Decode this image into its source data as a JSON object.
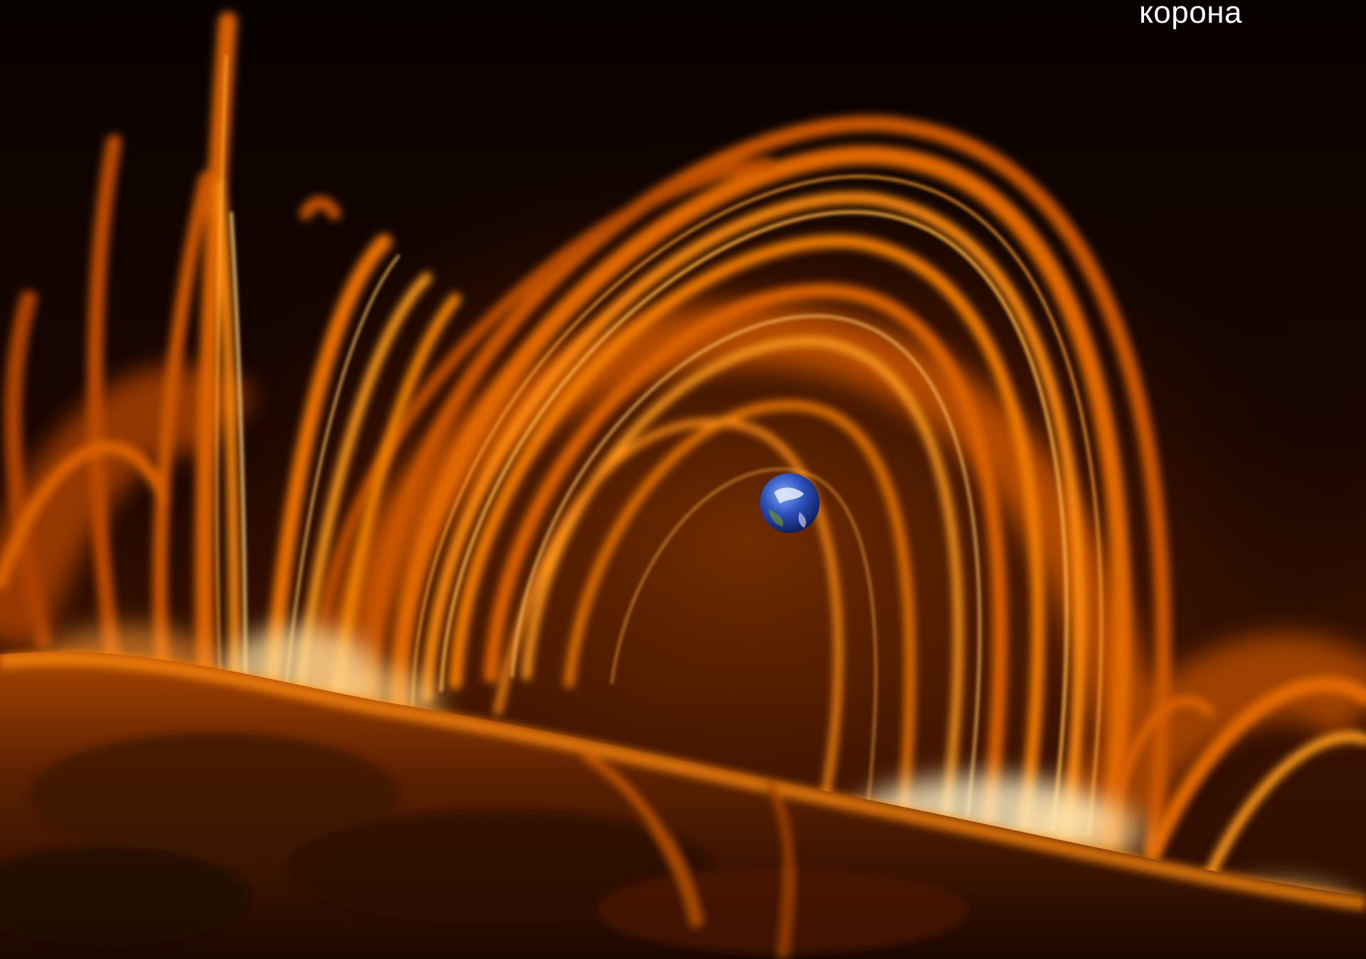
{
  "caption": "корона",
  "colors": {
    "background": "#000000",
    "plasma_deep": "#5a1f00",
    "plasma_mid": "#d85a00",
    "plasma_bright": "#ff9a1a",
    "plasma_hot": "#fff1c6",
    "earth_ocean": "#2a4fb8",
    "caption_text": "#ffffff"
  },
  "scene": {
    "subject": "solar-coronal-loops",
    "inset": "earth-for-scale"
  }
}
